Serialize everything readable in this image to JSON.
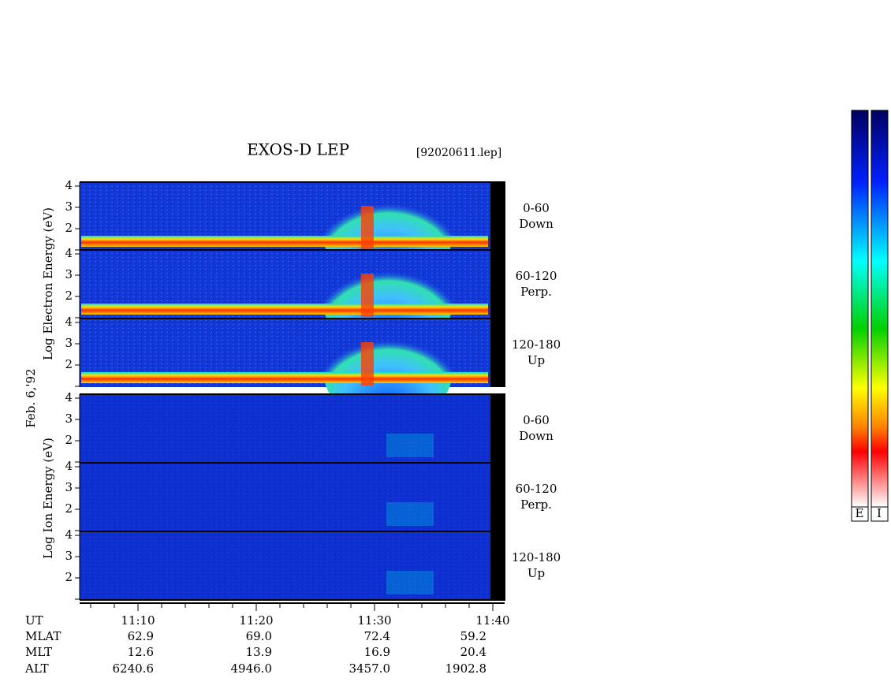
{
  "title": "EXOS-D LEP",
  "file": "[92020611.lep]",
  "date": "Feb. 6,'92",
  "electron_axis_label": "Log Electron Energy (eV)",
  "ion_axis_label": "Log Ion Energy (eV)",
  "panels": [
    {
      "angle": "0-60",
      "direction": "Down",
      "yticks": [
        2,
        3,
        4
      ]
    },
    {
      "angle": "60-120",
      "direction": "Perp.",
      "yticks": [
        2,
        3,
        4
      ]
    },
    {
      "angle": "120-180",
      "direction": "Up",
      "yticks": [
        2,
        3,
        4
      ]
    },
    {
      "angle": "0-60",
      "direction": "Down",
      "yticks": [
        2,
        3,
        4
      ]
    },
    {
      "angle": "60-120",
      "direction": "Perp.",
      "yticks": [
        2,
        3,
        4
      ]
    },
    {
      "angle": "120-180",
      "direction": "Up",
      "yticks": [
        2,
        3,
        4
      ]
    }
  ],
  "footer": {
    "row_labels": [
      "UT",
      "MLAT",
      "MLT",
      "ALT"
    ],
    "ut": [
      "11:10",
      "11:20",
      "11:30",
      "11:40"
    ],
    "mlat": [
      "62.9",
      "69.0",
      "72.4",
      "59.2"
    ],
    "mlt": [
      "12.6",
      "13.9",
      "16.9",
      "20.4"
    ],
    "alt": [
      "6240.6",
      "4946.0",
      "3457.0",
      "1902.8"
    ]
  },
  "colorbar_labels": [
    "E",
    "I"
  ]
}
